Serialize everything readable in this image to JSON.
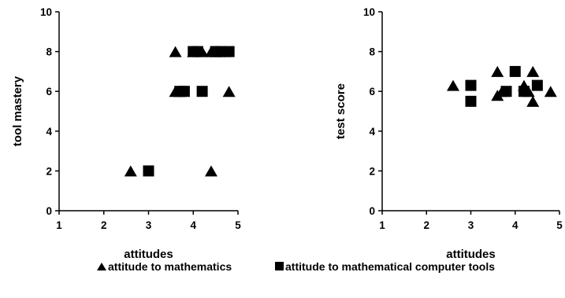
{
  "chart_data": [
    {
      "type": "scatter",
      "title": "",
      "xlabel": "attitudes",
      "ylabel": "tool mastery",
      "xlim": [
        1,
        5
      ],
      "ylim": [
        0,
        10
      ],
      "xticks": [
        "1",
        "2",
        "3",
        "4",
        "5"
      ],
      "yticks": [
        "0",
        "2",
        "4",
        "6",
        "8",
        "10"
      ],
      "grid": false,
      "series": [
        {
          "name": "attitude to mathematics",
          "marker": "triangle",
          "color": "#000000",
          "points": [
            [
              2.6,
              2
            ],
            [
              3.6,
              8
            ],
            [
              3.6,
              6
            ],
            [
              3.7,
              6
            ],
            [
              4.0,
              8
            ],
            [
              4.2,
              8
            ],
            [
              4.4,
              8
            ],
            [
              4.5,
              8
            ],
            [
              4.7,
              8
            ],
            [
              4.8,
              6
            ],
            [
              4.4,
              2
            ]
          ]
        },
        {
          "name": "attitude to mathematical computer tools",
          "marker": "square",
          "color": "#000000",
          "points": [
            [
              3.0,
              2
            ],
            [
              3.7,
              6
            ],
            [
              3.8,
              6
            ],
            [
              4.0,
              8
            ],
            [
              4.1,
              8
            ],
            [
              4.2,
              6
            ],
            [
              4.5,
              8
            ],
            [
              4.6,
              8
            ],
            [
              4.8,
              8
            ]
          ]
        }
      ]
    },
    {
      "type": "scatter",
      "title": "",
      "xlabel": "attitudes",
      "ylabel": "test score",
      "xlim": [
        1,
        5
      ],
      "ylim": [
        0,
        10
      ],
      "xticks": [
        "1",
        "2",
        "3",
        "4",
        "5"
      ],
      "yticks": [
        "0",
        "2",
        "4",
        "6",
        "8",
        "10"
      ],
      "grid": false,
      "series": [
        {
          "name": "attitude to mathematics",
          "marker": "triangle",
          "color": "#000000",
          "points": [
            [
              2.6,
              6.3
            ],
            [
              3.6,
              7
            ],
            [
              3.6,
              5.8
            ],
            [
              3.7,
              6
            ],
            [
              4.2,
              6.3
            ],
            [
              4.3,
              6.0
            ],
            [
              4.4,
              7
            ],
            [
              4.4,
              5.5
            ],
            [
              4.8,
              6
            ]
          ]
        },
        {
          "name": "attitude to mathematical computer tools",
          "marker": "square",
          "color": "#000000",
          "points": [
            [
              3.0,
              6.3
            ],
            [
              3.0,
              5.5
            ],
            [
              3.8,
              6
            ],
            [
              4.0,
              7
            ],
            [
              4.2,
              6.0
            ],
            [
              4.5,
              6.3
            ]
          ]
        }
      ]
    }
  ],
  "legend": {
    "placement": "bottom",
    "items": [
      {
        "marker": "triangle",
        "label": "attitude to mathematics"
      },
      {
        "marker": "square",
        "label": "attitude to mathematical computer tools"
      }
    ]
  }
}
